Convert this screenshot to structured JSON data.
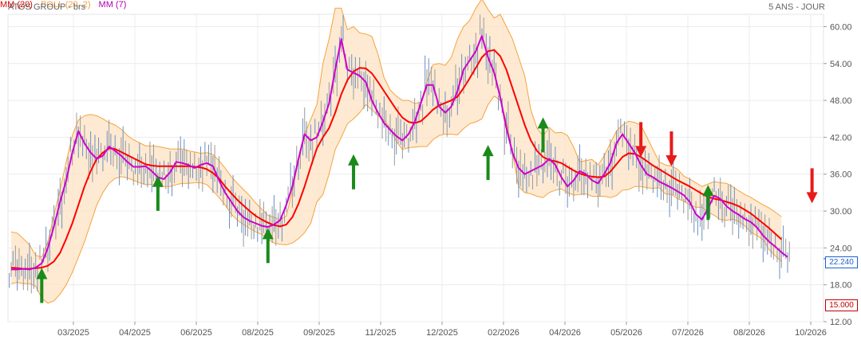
{
  "header": {
    "title": "ATOS GROUP - brs",
    "period": "5 ANS - JOUR"
  },
  "legend": [
    {
      "label": "MM (20)",
      "color": "#ff0000"
    },
    {
      "label": "BOLL (20, 2)",
      "color": "#f5a33a"
    },
    {
      "label": "MM (7)",
      "color": "#cc00cc"
    }
  ],
  "badges": {
    "last_price": "22.240",
    "low_price": "15.000"
  },
  "chart_data": {
    "type": "line",
    "x_ticks": [
      "03/2025",
      "04/2025",
      "06/2025",
      "08/2025",
      "09/2025",
      "11/2025",
      "12/2025",
      "02/2026",
      "04/2026",
      "05/2026",
      "07/2026",
      "08/2026",
      "10/2026"
    ],
    "y_ticks": [
      "60.00",
      "54.00",
      "48.00",
      "42.00",
      "36.00",
      "30.00",
      "24.00",
      "18.00",
      "12.00"
    ],
    "ylim": [
      12,
      62
    ],
    "grid": true,
    "series": [
      {
        "name": "MM (7)",
        "color": "#cc00cc",
        "values": [
          20.5,
          20.5,
          20.6,
          20.5,
          20.8,
          21.5,
          24,
          27.5,
          31.5,
          35,
          39.5,
          43,
          41,
          39.5,
          38.5,
          39,
          40.5,
          39.8,
          39,
          38,
          37.2,
          37.2,
          37.3,
          36.5,
          35.5,
          35.2,
          36.3,
          38,
          37.8,
          37.5,
          37,
          37.5,
          37.8,
          37.3,
          35,
          33,
          31.5,
          30,
          29,
          28.4,
          28,
          27.6,
          27.4,
          27.8,
          28.5,
          31,
          34,
          38.5,
          42.5,
          41.5,
          42,
          44.5,
          47.5,
          53,
          58,
          53,
          52.5,
          52,
          51,
          48,
          46,
          44.3,
          43.2,
          42.2,
          41.5,
          42.5,
          44.5,
          47.5,
          50.5,
          50.5,
          47,
          46,
          47,
          49.5,
          53,
          54.5,
          56,
          58.5,
          55,
          52.5,
          48.5,
          43.5,
          39.5,
          37,
          36,
          36.5,
          37,
          37.5,
          38.5,
          37.5,
          35.5,
          34,
          35,
          36.5,
          36,
          35,
          34.5,
          36,
          37.8,
          41,
          42.5,
          41,
          39.5,
          37.5,
          36,
          35.5,
          34.8,
          34.3,
          33.8,
          33.2,
          32.6,
          31.5,
          29.5,
          28.6,
          30.5,
          32.5,
          32,
          30.8,
          30,
          29.4,
          28.7,
          28.2,
          27.3,
          26,
          25,
          24.2,
          23.3,
          22.5
        ]
      },
      {
        "name": "MM (20)",
        "color": "#ff0000",
        "values": [
          20.8,
          20.7,
          20.6,
          20.6,
          20.7,
          20.8,
          21.1,
          21.8,
          23.2,
          25.5,
          28,
          31,
          34,
          36.5,
          38.5,
          39.5,
          40.2,
          40.1,
          39.6,
          39.1,
          38.6,
          38.1,
          37.6,
          37.4,
          37.3,
          37.3,
          37.3,
          37.3,
          37.3,
          37.3,
          37.2,
          37.1,
          36.8,
          36.2,
          35.3,
          34,
          32.9,
          31.8,
          30.9,
          30,
          29.2,
          28.6,
          28.1,
          27.7,
          27.5,
          27.8,
          29,
          31.2,
          34,
          37.2,
          40.2,
          42,
          43.5,
          46,
          49,
          51.3,
          52.7,
          53.3,
          53.2,
          52.4,
          51,
          49.5,
          48,
          46.5,
          45.2,
          44.5,
          44.3,
          44.6,
          45.5,
          46.5,
          47.2,
          47.6,
          48,
          48.6,
          50,
          51.6,
          53.3,
          55,
          56,
          56.2,
          55.2,
          53,
          50,
          47,
          44,
          41.5,
          39.8,
          38.8,
          38.3,
          38.1,
          37.8,
          37.2,
          36.6,
          36.1,
          35.8,
          35.6,
          35.5,
          35.6,
          36.4,
          37.6,
          38.8,
          39.4,
          39.3,
          38.8,
          38.1,
          37.4,
          36.8,
          36.2,
          35.6,
          35,
          34.5,
          34,
          33.4,
          32.8,
          32.3,
          32,
          31.8,
          31.5,
          31.2,
          30.8,
          30.2,
          29.6,
          28.8,
          28,
          27.2,
          26.3,
          25.4
        ]
      },
      {
        "name": "BOLL upper",
        "color": "#f5a33a",
        "values": [
          26.6,
          26.4,
          25.5,
          24.5,
          22.8,
          22.5,
          25,
          29.3,
          33.5,
          38,
          42.3,
          44.8,
          45.5,
          45.7,
          45.5,
          45,
          44.4,
          44,
          43.3,
          42.3,
          41.6,
          41.1,
          40.6,
          40.6,
          40.5,
          40.3,
          40.1,
          40.1,
          40.1,
          39.8,
          39.6,
          39.4,
          39.5,
          39.2,
          38.2,
          37,
          35.6,
          34.5,
          33.5,
          32.5,
          31.3,
          30.3,
          29.3,
          29,
          28.6,
          29.2,
          33.3,
          38.3,
          42.5,
          44.9,
          47.3,
          54,
          58,
          63,
          63,
          59.5,
          60,
          59,
          58.8,
          58.4,
          55.5,
          51.7,
          49.7,
          48.7,
          48,
          48,
          47.5,
          47.7,
          51,
          53.8,
          54,
          53.7,
          55,
          58,
          60,
          61,
          63,
          64.5,
          62.8,
          61.4,
          62,
          60,
          58,
          55,
          52,
          46.5,
          43.5,
          42.2,
          43.6,
          42.7,
          42.8,
          42.3,
          40.4,
          38,
          38.2,
          38.4,
          37.5,
          39,
          41,
          43,
          44,
          44.6,
          44.4,
          44,
          42,
          40,
          38,
          37.5,
          37.3,
          36.8,
          35.7,
          35.2,
          34.6,
          34,
          34.4,
          34.8,
          34.6,
          34.5,
          34,
          33.3,
          32.7,
          32.2,
          31.6,
          31,
          30.5,
          29.8,
          29.1
        ]
      },
      {
        "name": "BOLL lower",
        "color": "#f5a33a",
        "values": [
          18.2,
          18.4,
          18.2,
          18.2,
          17.8,
          15.8,
          15,
          15.4,
          16.5,
          18,
          20,
          22.5,
          25,
          28,
          31,
          33,
          34.5,
          35.3,
          35.6,
          35.4,
          35,
          34.6,
          34.3,
          34.3,
          34,
          34,
          34,
          34.3,
          34.5,
          34.5,
          34.6,
          34.6,
          34.3,
          33.3,
          32.2,
          31,
          29.5,
          28.5,
          27.8,
          27.2,
          26.6,
          26.2,
          25.4,
          24.8,
          24.6,
          24.5,
          24.8,
          25.5,
          26.5,
          28,
          31.5,
          32.7,
          36,
          40,
          42,
          44.2,
          45,
          46,
          47.3,
          46.5,
          45.5,
          44.8,
          43.4,
          41.3,
          40,
          40.3,
          40.4,
          40.5,
          40.5,
          41.6,
          42.3,
          42.5,
          42.5,
          42.4,
          43.4,
          44.2,
          44.5,
          45,
          47.3,
          48.7,
          48,
          44.5,
          39.5,
          34,
          33,
          32.8,
          32.4,
          32.2,
          33,
          33.4,
          33.6,
          33,
          32.6,
          32.7,
          32.8,
          32.4,
          32.4,
          32.4,
          32.2,
          32.5,
          33.4,
          33.5,
          34,
          34,
          33.8,
          33.7,
          33.8,
          32.8,
          32.7,
          32,
          31.6,
          31,
          30.6,
          30.6,
          29.8,
          29.3,
          28.6,
          28.5,
          28.7,
          28.3,
          27.6,
          26.6,
          26,
          25.3,
          23.7,
          22.7,
          21.8
        ]
      }
    ],
    "signals": [
      {
        "type": "buy",
        "index": 5,
        "value": 21
      },
      {
        "type": "buy",
        "index": 24,
        "value": 36
      },
      {
        "type": "buy",
        "index": 42,
        "value": 27.5
      },
      {
        "type": "buy",
        "index": 56,
        "value": 39.5
      },
      {
        "type": "buy",
        "index": 78,
        "value": 41
      },
      {
        "type": "buy",
        "index": 87,
        "value": 45.5
      },
      {
        "type": "sell",
        "index": 103,
        "value": 38.5
      },
      {
        "type": "sell",
        "index": 108,
        "value": 37
      },
      {
        "type": "buy",
        "index": 114,
        "value": 34.5
      },
      {
        "type": "sell",
        "index": 131,
        "value": 31
      }
    ]
  }
}
